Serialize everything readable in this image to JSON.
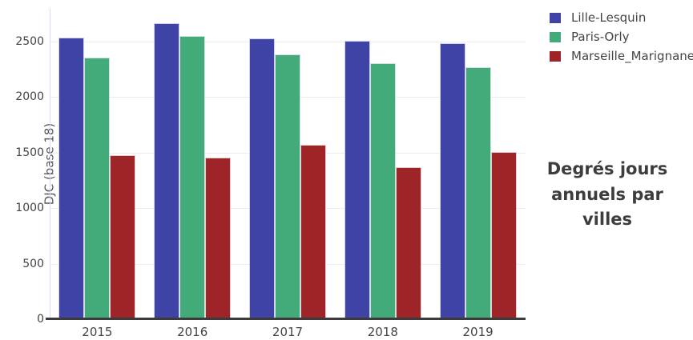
{
  "title": "Degrés jours annuels par villes",
  "axes": {
    "ylabel": "DJC (base 18)",
    "yticks": [
      0,
      500,
      1000,
      1500,
      2000,
      2500
    ]
  },
  "legend": {
    "position": "top-right"
  },
  "chart_data": {
    "type": "bar",
    "title": "Degrés jours annuels par villes",
    "categories": [
      "2015",
      "2016",
      "2017",
      "2018",
      "2019"
    ],
    "series": [
      {
        "name": "Lille-Lesquin",
        "color": "#3E43A5",
        "values": [
          2535,
          2665,
          2525,
          2505,
          2480
        ]
      },
      {
        "name": "Paris-Orly",
        "color": "#43AA79",
        "values": [
          2355,
          2550,
          2385,
          2300,
          2265
        ]
      },
      {
        "name": "Marseille_Marignane",
        "color": "#9E2428",
        "values": [
          1475,
          1455,
          1570,
          1365,
          1505
        ]
      }
    ],
    "xlabel": "",
    "ylabel": "DJC (base 18)",
    "ylim": [
      0,
      2800
    ],
    "grid": true,
    "legend_position": "top-right"
  },
  "colors": {
    "axis_line": "#3b3b3b",
    "gridline": "#ebebf0",
    "tick_text": "#444444",
    "title_text": "#3d3d3d"
  }
}
